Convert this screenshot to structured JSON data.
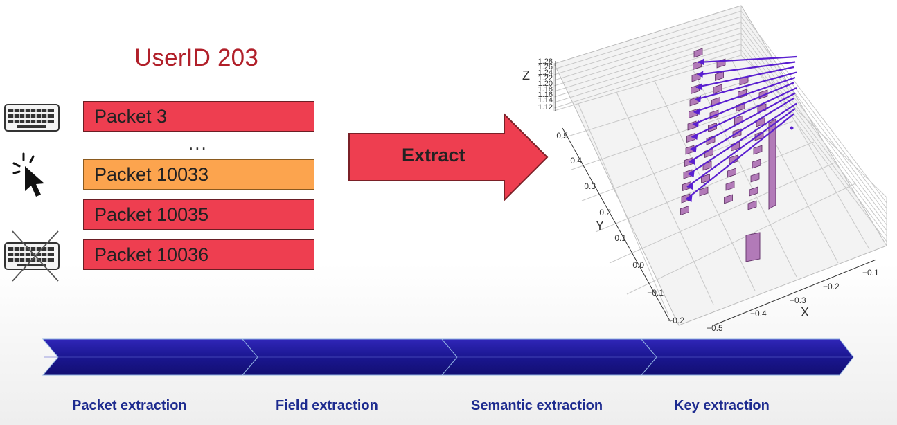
{
  "title": "UserID 203",
  "packets": [
    {
      "label": "Packet 3",
      "color": "#ee3e50"
    },
    {
      "label": "Packet 10033",
      "color": "#fca44e"
    },
    {
      "label": "Packet 10035",
      "color": "#ee3e50"
    },
    {
      "label": "Packet 10036",
      "color": "#ee3e50"
    }
  ],
  "ellipsis": "...",
  "icons": {
    "top": "keyboard-icon",
    "middle": "mouse-click-icon",
    "bottom": "crossed-keyboard-icon"
  },
  "extract_label": "Extract",
  "plot": {
    "z_label": "Z",
    "z_ticks": [
      "1.28",
      "1.26",
      "1.24",
      "1.22",
      "1.20",
      "1.18",
      "1.16",
      "1.14",
      "1.12"
    ],
    "y_label": "Y",
    "y_ticks": [
      "0.5",
      "0.4",
      "0.3",
      "0.2",
      "0.1",
      "0.0",
      "−0.1",
      "−0.2"
    ],
    "x_label": "X",
    "x_ticks": [
      "−0.5",
      "−0.4",
      "−0.3",
      "−0.2",
      "−0.1"
    ]
  },
  "stages": [
    "Packet extraction",
    "Field extraction",
    "Semantic extraction",
    "Key extraction"
  ],
  "colors": {
    "title": "#b1202a",
    "packet_red": "#ee3e50",
    "packet_orange": "#fca44e",
    "arrow": "#ee3e50",
    "pipeline": "#1f1a8c",
    "stage_text": "#1d2b8f",
    "plot_marker": "#b27ab8",
    "plot_vector": "#5a1fd0"
  }
}
